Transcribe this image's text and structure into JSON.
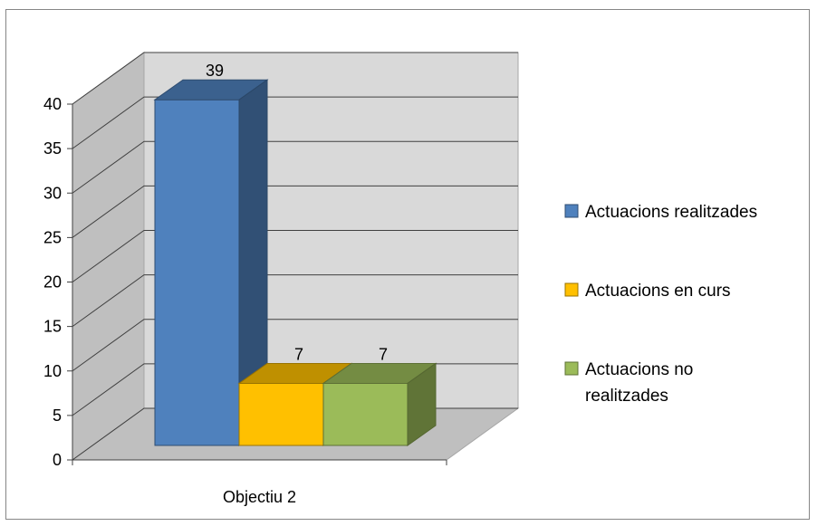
{
  "chart_data": {
    "type": "bar",
    "categories": [
      "Objectiu 2"
    ],
    "series": [
      {
        "name": "Actuacions realitzades",
        "values": [
          39
        ],
        "color": "#4F81BD"
      },
      {
        "name": "Actuacions en curs",
        "values": [
          7
        ],
        "color": "#FFC000"
      },
      {
        "name": "Actuacions no realitzades",
        "values": [
          7
        ],
        "color": "#9BBB59"
      }
    ],
    "yticks": [
      "0",
      "5",
      "10",
      "15",
      "20",
      "25",
      "30",
      "35",
      "40"
    ],
    "ylim": [
      0,
      40
    ],
    "grid": true,
    "three_d": true,
    "legend_position": "right",
    "wall_color": "#D9D9D9",
    "floor_color": "#BFBFBF"
  }
}
